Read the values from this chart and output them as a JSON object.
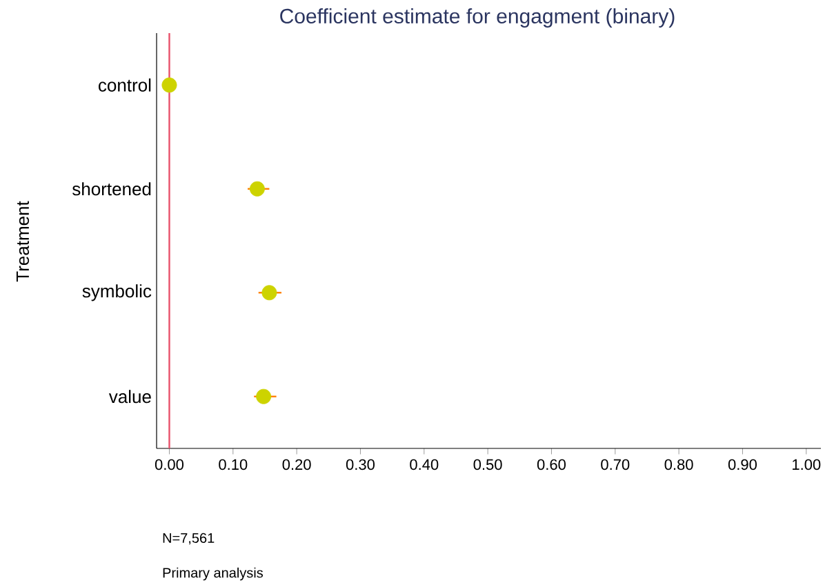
{
  "chart_data": {
    "type": "scatter",
    "orientation": "horizontal",
    "title": "Coefficient estimate for engagment (binary)",
    "ylabel": "Treatment",
    "categories": [
      "control",
      "shortened",
      "symbolic",
      "value"
    ],
    "values": [
      0,
      0.138,
      0.157,
      0.148
    ],
    "errors": [
      null,
      [
        0.123,
        0.157
      ],
      [
        0.14,
        0.176
      ],
      [
        0.133,
        0.168
      ]
    ],
    "color": "#cdd300",
    "xlim": [
      -0.02,
      1.023
    ],
    "xticks": [
      {
        "value": 0,
        "label": "0.00"
      },
      {
        "value": 0.1,
        "label": "0.10"
      },
      {
        "value": 0.2,
        "label": "0.20"
      },
      {
        "value": 0.3,
        "label": "0.30"
      },
      {
        "value": 0.4,
        "label": "0.40"
      },
      {
        "value": 0.5,
        "label": "0.50"
      },
      {
        "value": 0.6,
        "label": "0.60"
      },
      {
        "value": 0.7,
        "label": "0.70"
      },
      {
        "value": 0.8,
        "label": "0.80"
      },
      {
        "value": 0.9,
        "label": "0.90"
      },
      {
        "value": 1,
        "label": "1.00"
      }
    ],
    "ref_lines": [
      {
        "axis": "x",
        "value": 0,
        "color": "#e8506a"
      }
    ],
    "annotations": [
      "N=7,561",
      "Primary analysis"
    ]
  }
}
